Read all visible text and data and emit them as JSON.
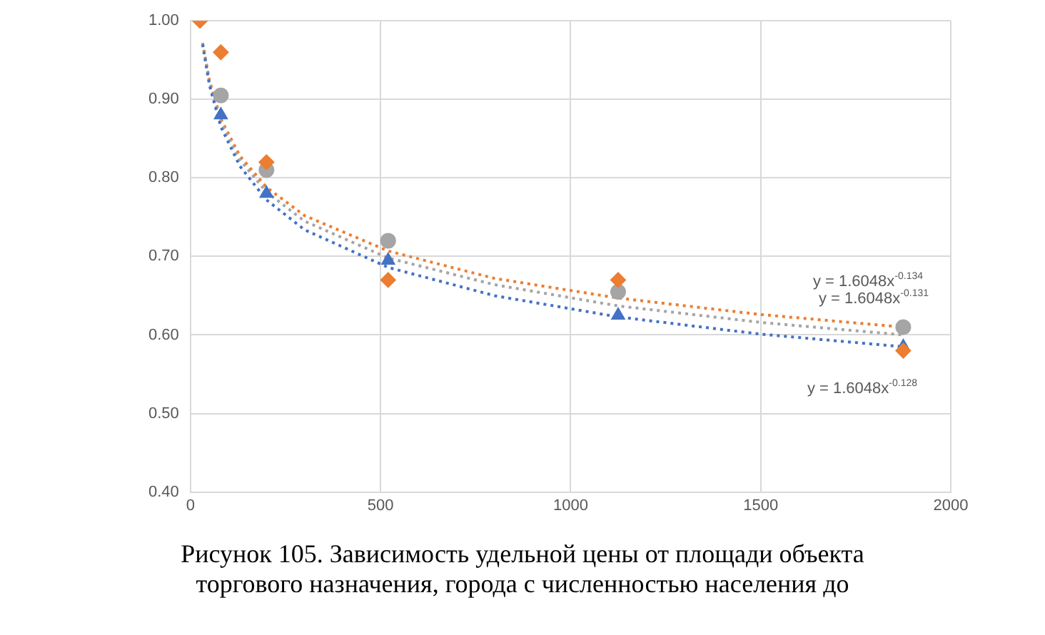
{
  "chart_data": {
    "type": "scatter",
    "xlim": [
      0,
      2000
    ],
    "xticks": [
      0,
      500,
      1000,
      1500,
      2000
    ],
    "ylim": [
      0.4,
      1.0
    ],
    "yticks": [
      {
        "value": 0.4,
        "label": "0.40"
      },
      {
        "value": 0.5,
        "label": "0.50"
      },
      {
        "value": 0.6,
        "label": "0.60"
      },
      {
        "value": 0.7,
        "label": "0.70"
      },
      {
        "value": 0.8,
        "label": "0.80"
      },
      {
        "value": 0.9,
        "label": "0.90"
      },
      {
        "value": 1.0,
        "label": "1.00"
      }
    ],
    "grid": true,
    "legend": false,
    "series": [
      {
        "type": "line",
        "color": "#ed7d31",
        "marker": "none",
        "line_style": "dotted",
        "x": [
          32,
          50,
          80,
          130,
          200,
          300,
          520,
          800,
          1125,
          1500,
          1875
        ],
        "values": [
          0.972,
          0.924,
          0.875,
          0.828,
          0.788,
          0.752,
          0.707,
          0.672,
          0.647,
          0.626,
          0.61
        ]
      },
      {
        "type": "line",
        "color": "#a5a5a5",
        "marker": "none",
        "line_style": "dotted",
        "x": [
          32,
          50,
          80,
          130,
          200,
          300,
          520,
          800,
          1125,
          1500,
          1875
        ],
        "values": [
          0.971,
          0.921,
          0.871,
          0.823,
          0.782,
          0.745,
          0.698,
          0.664,
          0.637,
          0.616,
          0.6
        ]
      },
      {
        "type": "line",
        "color": "#4472c4",
        "marker": "none",
        "line_style": "dotted",
        "x": [
          32,
          50,
          80,
          130,
          200,
          300,
          520,
          800,
          1125,
          1500,
          1875
        ],
        "values": [
          0.97,
          0.918,
          0.865,
          0.815,
          0.772,
          0.734,
          0.686,
          0.65,
          0.623,
          0.601,
          0.585
        ]
      },
      {
        "color": "#4472c4",
        "marker": "triangle",
        "x": [
          80,
          200,
          520,
          1125,
          1875
        ],
        "values": [
          0.88,
          0.78,
          0.695,
          0.625,
          0.585
        ]
      },
      {
        "color": "#a5a5a5",
        "marker": "circle",
        "x": [
          80,
          200,
          520,
          1125,
          1875
        ],
        "values": [
          0.905,
          0.81,
          0.72,
          0.655,
          0.61
        ]
      },
      {
        "color": "#ed7d31",
        "marker": "diamond",
        "x": [
          25,
          80,
          200,
          520,
          1125,
          1875
        ],
        "values": [
          1.0,
          0.96,
          0.82,
          0.67,
          0.67,
          0.58
        ]
      }
    ],
    "annotations": [
      "y = 1.6048x$^{-0.134}$",
      "y = 1.6048x$^{-0.131}$",
      "y = 1.6048x$^{-0.128}$",
      "Рисунок 105. Зависимость удельной цены от площади объекта торгового назначения, города с численностью населения до"
    ]
  }
}
